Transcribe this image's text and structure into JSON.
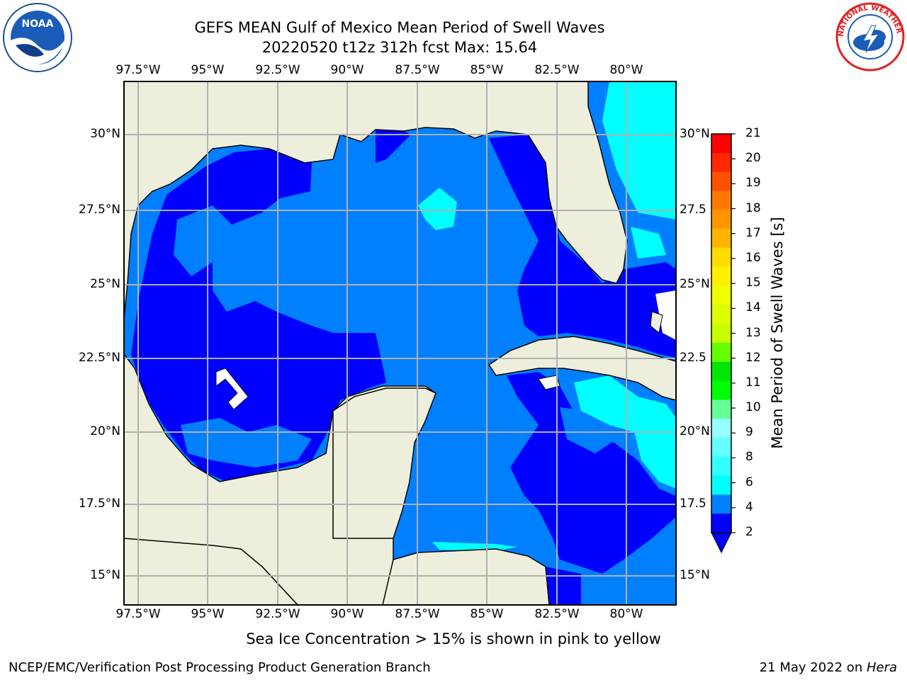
{
  "title": {
    "line1": "GEFS MEAN Gulf of Mexico Mean Period of Swell Waves",
    "line2": "20220520 t12z 312h fcst   Max: 15.64"
  },
  "logos": {
    "left": {
      "name": "NOAA",
      "text": "NOAA"
    },
    "right": {
      "name": "National Weather Service",
      "text": "NATIONAL WEATHER SERVICE"
    }
  },
  "map": {
    "lon_ticks": [
      "97.5°W",
      "95°W",
      "92.5°W",
      "90°W",
      "87.5°W",
      "85°W",
      "82.5°W",
      "80°W"
    ],
    "lat_ticks_left": [
      "30°N",
      "27.5°N",
      "25°N",
      "22.5°N",
      "20°N",
      "17.5°N",
      "15°N"
    ],
    "lat_ticks_right": [
      "30°N",
      "27.5",
      "25°N",
      "22.5",
      "20°N",
      "17.5",
      "15°N"
    ],
    "colors": {
      "land": "#eeeedd",
      "deep_blue": "#0000ff",
      "blue": "#0080ff",
      "cyan": "#00ffff",
      "yellow_green": "#e6ff00"
    }
  },
  "colorbar": {
    "label": "Mean Period of Swell Waves [s]",
    "ticks": [
      "21",
      "20",
      "19",
      "18",
      "17",
      "16",
      "15",
      "14",
      "13",
      "12",
      "11",
      "10",
      "9",
      "8",
      "6",
      "4",
      "2"
    ],
    "colors": [
      "#ff0000",
      "#ff2800",
      "#ff5000",
      "#ff7800",
      "#ff9600",
      "#ffb400",
      "#ffdc00",
      "#fff000",
      "#f0ff00",
      "#dcff00",
      "#c8ff00",
      "#64ff00",
      "#00e600",
      "#00ff00",
      "#64ff96",
      "#96ffff",
      "#64ffff",
      "#32ffff",
      "#00ffff",
      "#0080ff",
      "#0000ff"
    ]
  },
  "footer": {
    "note": "Sea Ice Concentration > 15% is shown in pink to yellow",
    "left": "NCEP/EMC/Verification Post Processing Product Generation Branch",
    "right_date": "21 May 2022 on ",
    "right_host": "Hera"
  }
}
